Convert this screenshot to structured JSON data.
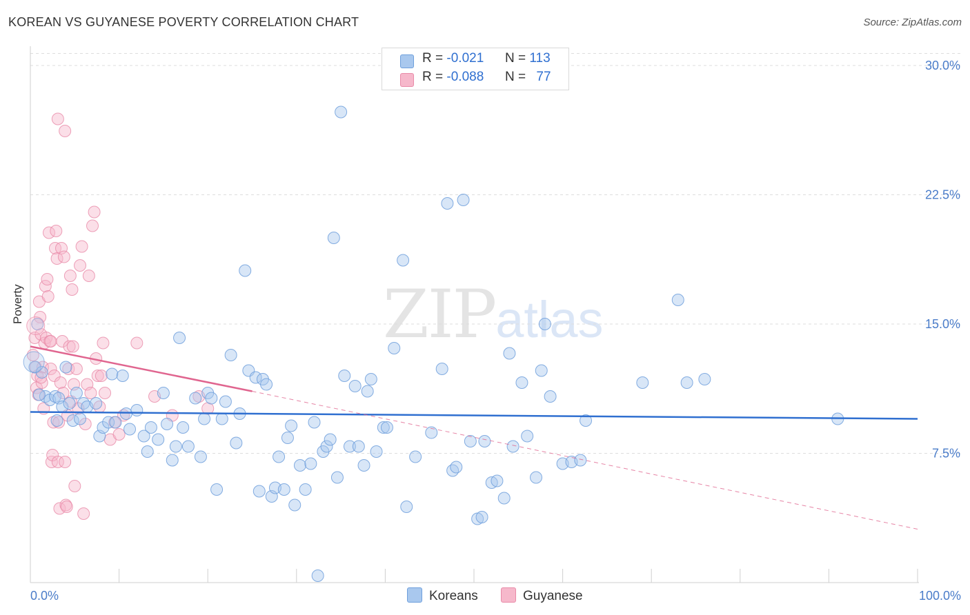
{
  "title": "KOREAN VS GUYANESE POVERTY CORRELATION CHART",
  "source": "Source: ZipAtlas.com",
  "watermark": {
    "zip": "ZIP",
    "atlas": "atlas"
  },
  "legend": {
    "rows": [
      {
        "r_label": "R =",
        "r_value": "-0.021",
        "n_label": "N =",
        "n_value": "113",
        "color": "#a9c8ee"
      },
      {
        "r_label": "R =",
        "r_value": "-0.088",
        "n_label": "N =",
        "n_value": "77",
        "color": "#f6b8cb"
      }
    ]
  },
  "bottom_legend": {
    "koreans": "Koreans",
    "guyanese": "Guyanese"
  },
  "colors": {
    "blue_fill": "#a9c8ee",
    "blue_stroke": "#6e9fdc",
    "blue_line": "#2f6fd0",
    "pink_fill": "#f6b8cb",
    "pink_stroke": "#e98aa8",
    "pink_line": "#e0658f",
    "grid": "#dddddd",
    "tick": "#4a7cc9"
  },
  "chart_data": {
    "type": "scatter",
    "title": "KOREAN VS GUYANESE POVERTY CORRELATION CHART",
    "xlabel": "",
    "ylabel": "Poverty",
    "xlim": [
      0,
      100
    ],
    "ylim": [
      0,
      31
    ],
    "x_tick_labels": [
      "0.0%",
      "100.0%"
    ],
    "y_ticks": [
      7.5,
      15.0,
      22.5,
      30.0
    ],
    "y_tick_labels": [
      "7.5%",
      "15.0%",
      "22.5%",
      "30.0%"
    ],
    "series": [
      {
        "name": "Koreans",
        "trend": {
          "x0": 0,
          "y0": 9.9,
          "x1": 100,
          "y1": 9.5
        },
        "points": [
          [
            0.5,
            12.5
          ],
          [
            0.8,
            15.0
          ],
          [
            1.3,
            12.2
          ],
          [
            1.7,
            10.8
          ],
          [
            2.2,
            10.6
          ],
          [
            2.8,
            10.8
          ],
          [
            3.2,
            10.7
          ],
          [
            3.6,
            10.2
          ],
          [
            4.0,
            12.5
          ],
          [
            4.4,
            10.4
          ],
          [
            4.8,
            9.4
          ],
          [
            5.2,
            11.0
          ],
          [
            5.6,
            9.5
          ],
          [
            6.0,
            10.4
          ],
          [
            6.4,
            10.2
          ],
          [
            7.4,
            10.4
          ],
          [
            7.8,
            8.5
          ],
          [
            8.2,
            9.0
          ],
          [
            8.8,
            9.3
          ],
          [
            9.2,
            12.1
          ],
          [
            9.6,
            9.3
          ],
          [
            10.4,
            12.0
          ],
          [
            10.8,
            9.8
          ],
          [
            11.2,
            8.9
          ],
          [
            12.0,
            10.0
          ],
          [
            12.8,
            8.5
          ],
          [
            13.2,
            7.6
          ],
          [
            13.6,
            9.0
          ],
          [
            14.4,
            8.3
          ],
          [
            15.0,
            11.0
          ],
          [
            15.4,
            9.2
          ],
          [
            16.0,
            7.1
          ],
          [
            16.4,
            7.9
          ],
          [
            16.8,
            14.2
          ],
          [
            17.2,
            9.0
          ],
          [
            17.8,
            7.9
          ],
          [
            18.6,
            10.7
          ],
          [
            19.2,
            7.3
          ],
          [
            19.6,
            9.5
          ],
          [
            20.0,
            11.0
          ],
          [
            20.4,
            10.7
          ],
          [
            21.0,
            5.4
          ],
          [
            21.6,
            9.5
          ],
          [
            22.0,
            10.5
          ],
          [
            22.6,
            13.2
          ],
          [
            23.2,
            8.1
          ],
          [
            23.6,
            9.8
          ],
          [
            24.2,
            18.1
          ],
          [
            24.6,
            12.3
          ],
          [
            25.4,
            11.9
          ],
          [
            25.8,
            5.3
          ],
          [
            26.2,
            11.8
          ],
          [
            26.6,
            11.5
          ],
          [
            27.2,
            5.0
          ],
          [
            27.6,
            5.5
          ],
          [
            28.0,
            7.3
          ],
          [
            28.6,
            5.4
          ],
          [
            29.0,
            8.4
          ],
          [
            29.4,
            9.1
          ],
          [
            29.8,
            4.5
          ],
          [
            30.4,
            6.8
          ],
          [
            31.0,
            5.4
          ],
          [
            31.6,
            6.9
          ],
          [
            32.0,
            9.3
          ],
          [
            32.4,
            0.4
          ],
          [
            33.0,
            7.6
          ],
          [
            33.4,
            7.9
          ],
          [
            33.8,
            8.3
          ],
          [
            34.2,
            20.0
          ],
          [
            34.6,
            6.1
          ],
          [
            35.0,
            27.3
          ],
          [
            35.4,
            12.0
          ],
          [
            36.0,
            7.9
          ],
          [
            36.6,
            11.4
          ],
          [
            37.0,
            7.9
          ],
          [
            37.6,
            6.8
          ],
          [
            38.0,
            11.1
          ],
          [
            38.4,
            11.8
          ],
          [
            39.0,
            7.6
          ],
          [
            39.8,
            9.0
          ],
          [
            40.2,
            9.0
          ],
          [
            41.0,
            13.6
          ],
          [
            42.0,
            18.7
          ],
          [
            42.4,
            4.4
          ],
          [
            43.4,
            7.3
          ],
          [
            45.2,
            8.7
          ],
          [
            46.4,
            12.4
          ],
          [
            47.0,
            22.0
          ],
          [
            47.6,
            6.5
          ],
          [
            48.0,
            6.7
          ],
          [
            48.8,
            22.2
          ],
          [
            49.6,
            8.2
          ],
          [
            50.4,
            3.7
          ],
          [
            50.9,
            3.8
          ],
          [
            51.2,
            8.2
          ],
          [
            52.0,
            5.8
          ],
          [
            52.6,
            5.9
          ],
          [
            53.4,
            4.9
          ],
          [
            54.0,
            13.3
          ],
          [
            54.4,
            7.9
          ],
          [
            55.4,
            11.6
          ],
          [
            56.0,
            8.5
          ],
          [
            57.0,
            6.1
          ],
          [
            57.6,
            12.3
          ],
          [
            58.0,
            15.0
          ],
          [
            58.6,
            10.8
          ],
          [
            60.0,
            6.9
          ],
          [
            61.0,
            7.0
          ],
          [
            62.0,
            7.1
          ],
          [
            62.6,
            9.4
          ],
          [
            69.0,
            11.6
          ],
          [
            73.0,
            16.4
          ],
          [
            74.0,
            11.6
          ],
          [
            76.0,
            11.8
          ],
          [
            91.0,
            9.5
          ],
          [
            1.0,
            10.9
          ],
          [
            3.0,
            9.4
          ]
        ]
      },
      {
        "name": "Guyanese",
        "trend": {
          "x0": 0,
          "y0": 13.7,
          "x1": 25,
          "y1": 11.1
        },
        "trend_dashed": {
          "x0": 25,
          "y0": 11.1,
          "x1": 100,
          "y1": 3.1
        },
        "points": [
          [
            0.3,
            13.2
          ],
          [
            0.5,
            14.2
          ],
          [
            0.6,
            12.5
          ],
          [
            0.7,
            11.3
          ],
          [
            0.8,
            12.0
          ],
          [
            0.9,
            10.9
          ],
          [
            1.0,
            16.3
          ],
          [
            1.1,
            15.4
          ],
          [
            1.2,
            14.4
          ],
          [
            1.3,
            11.6
          ],
          [
            1.4,
            12.5
          ],
          [
            1.5,
            10.1
          ],
          [
            1.6,
            13.9
          ],
          [
            1.7,
            17.2
          ],
          [
            1.8,
            14.2
          ],
          [
            1.9,
            17.6
          ],
          [
            2.0,
            16.6
          ],
          [
            2.1,
            20.3
          ],
          [
            2.2,
            14.0
          ],
          [
            2.3,
            12.4
          ],
          [
            2.4,
            7.0
          ],
          [
            2.5,
            7.4
          ],
          [
            2.6,
            9.3
          ],
          [
            2.7,
            12.0
          ],
          [
            2.8,
            19.4
          ],
          [
            2.9,
            20.4
          ],
          [
            3.0,
            18.8
          ],
          [
            3.1,
            7.0
          ],
          [
            3.2,
            9.3
          ],
          [
            3.3,
            4.3
          ],
          [
            3.4,
            11.6
          ],
          [
            3.5,
            19.4
          ],
          [
            3.6,
            14.0
          ],
          [
            3.7,
            11.0
          ],
          [
            3.8,
            18.9
          ],
          [
            3.9,
            7.0
          ],
          [
            4.0,
            4.5
          ],
          [
            4.1,
            4.4
          ],
          [
            4.2,
            9.7
          ],
          [
            4.3,
            12.4
          ],
          [
            4.4,
            13.7
          ],
          [
            4.5,
            17.8
          ],
          [
            4.6,
            10.5
          ],
          [
            4.7,
            17.0
          ],
          [
            4.8,
            13.7
          ],
          [
            4.9,
            11.5
          ],
          [
            5.0,
            5.6
          ],
          [
            5.2,
            12.4
          ],
          [
            5.4,
            10.1
          ],
          [
            5.6,
            18.4
          ],
          [
            5.8,
            19.5
          ],
          [
            6.0,
            4.0
          ],
          [
            6.2,
            9.2
          ],
          [
            6.4,
            11.5
          ],
          [
            6.6,
            17.8
          ],
          [
            6.8,
            11.0
          ],
          [
            7.0,
            20.7
          ],
          [
            7.2,
            21.5
          ],
          [
            7.4,
            13.0
          ],
          [
            7.6,
            12.0
          ],
          [
            7.8,
            10.2
          ],
          [
            8.0,
            12.0
          ],
          [
            8.2,
            13.9
          ],
          [
            8.4,
            11.0
          ],
          [
            9.0,
            8.3
          ],
          [
            9.5,
            9.3
          ],
          [
            10.0,
            8.6
          ],
          [
            10.5,
            9.7
          ],
          [
            12.0,
            13.9
          ],
          [
            14.0,
            10.8
          ],
          [
            16.0,
            9.7
          ],
          [
            19.0,
            10.8
          ],
          [
            20.0,
            10.1
          ],
          [
            3.1,
            26.9
          ],
          [
            3.9,
            26.2
          ],
          [
            2.3,
            14.0
          ],
          [
            1.2,
            11.9
          ]
        ]
      }
    ]
  }
}
